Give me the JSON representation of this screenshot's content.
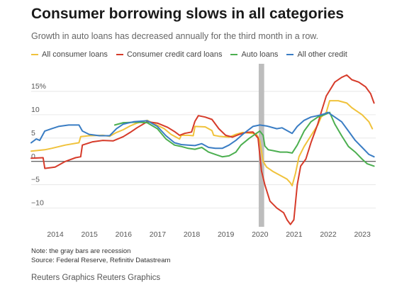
{
  "header": {
    "title": "Consumer borrowing slows in all categories",
    "subtitle": "Growth in auto loans has decreased annually for the third month in a row."
  },
  "footer": {
    "note": "Note: the gray bars are recession",
    "source": "Source: Federal Reserve, Refinitiv Datastream",
    "credit": "Reuters Graphics Reuters Graphics"
  },
  "colors": {
    "all_consumer_loans": "#f0c23b",
    "consumer_credit_card_loans": "#d63b2a",
    "auto_loans": "#4caf50",
    "all_other_credit": "#3a7dc4",
    "recession": "#bdbdbd"
  },
  "chart_data": {
    "type": "line",
    "title": "Consumer borrowing slows in all categories",
    "subtitle": "Growth in auto loans has decreased annually for the third month in a row.",
    "x_ticks": [
      "2014",
      "2015",
      "2016",
      "2017",
      "2018",
      "2019",
      "2020",
      "2021",
      "2022",
      "2023"
    ],
    "y_ticks": [
      "15%",
      "10",
      "5",
      "0",
      "−5",
      "−10"
    ],
    "y_tick_values": [
      15,
      10,
      5,
      0,
      -5,
      -10
    ],
    "xlim": [
      2013.5,
      2023.6
    ],
    "ylim": [
      -14,
      20
    ],
    "legend_position": "top-left",
    "recession_band": [
      2020.17,
      2020.33
    ],
    "series": [
      {
        "name": "All consumer loans",
        "color": "#f0c23b",
        "points": [
          [
            2013.5,
            2.2
          ],
          [
            2013.9,
            2.5
          ],
          [
            2014.1,
            2.8
          ],
          [
            2014.5,
            3.5
          ],
          [
            2014.9,
            4.0
          ],
          [
            2014.95,
            5.3
          ],
          [
            2015.2,
            5.5
          ],
          [
            2015.6,
            5.6
          ],
          [
            2015.8,
            5.4
          ],
          [
            2016.0,
            6.2
          ],
          [
            2016.2,
            6.8
          ],
          [
            2016.4,
            7.6
          ],
          [
            2016.6,
            8.2
          ],
          [
            2016.9,
            8.8
          ],
          [
            2017.1,
            8.1
          ],
          [
            2017.4,
            7.0
          ],
          [
            2017.6,
            5.8
          ],
          [
            2017.85,
            4.8
          ],
          [
            2017.9,
            5.6
          ],
          [
            2018.1,
            5.6
          ],
          [
            2018.25,
            5.5
          ],
          [
            2018.3,
            7.5
          ],
          [
            2018.6,
            7.4
          ],
          [
            2018.8,
            6.6
          ],
          [
            2018.85,
            5.6
          ],
          [
            2019.0,
            5.4
          ],
          [
            2019.3,
            5.2
          ],
          [
            2019.5,
            5.8
          ],
          [
            2019.7,
            6.2
          ],
          [
            2020.0,
            6.0
          ],
          [
            2020.1,
            5.9
          ],
          [
            2020.2,
            4.5
          ],
          [
            2020.3,
            0.0
          ],
          [
            2020.4,
            -1.2
          ],
          [
            2020.6,
            -2.2
          ],
          [
            2020.8,
            -3.0
          ],
          [
            2021.0,
            -3.8
          ],
          [
            2021.1,
            -4.6
          ],
          [
            2021.15,
            -5.2
          ],
          [
            2021.25,
            -2.5
          ],
          [
            2021.35,
            1.0
          ],
          [
            2021.5,
            3.2
          ],
          [
            2021.7,
            5.5
          ],
          [
            2021.9,
            7.8
          ],
          [
            2022.0,
            9.5
          ],
          [
            2022.15,
            10.5
          ],
          [
            2022.25,
            13.0
          ],
          [
            2022.5,
            13.0
          ],
          [
            2022.75,
            12.5
          ],
          [
            2022.9,
            11.5
          ],
          [
            2023.0,
            11.0
          ],
          [
            2023.2,
            10.0
          ],
          [
            2023.4,
            8.5
          ],
          [
            2023.5,
            7.0
          ]
        ]
      },
      {
        "name": "Consumer credit card loans",
        "color": "#d63b2a",
        "points": [
          [
            2013.5,
            0.7
          ],
          [
            2013.85,
            0.8
          ],
          [
            2013.9,
            -1.5
          ],
          [
            2014.2,
            -1.2
          ],
          [
            2014.5,
            0.0
          ],
          [
            2014.8,
            0.8
          ],
          [
            2014.95,
            1.0
          ],
          [
            2015.0,
            3.5
          ],
          [
            2015.3,
            4.2
          ],
          [
            2015.6,
            4.5
          ],
          [
            2015.9,
            4.4
          ],
          [
            2016.2,
            5.3
          ],
          [
            2016.4,
            6.2
          ],
          [
            2016.6,
            7.2
          ],
          [
            2016.9,
            8.5
          ],
          [
            2017.2,
            8.2
          ],
          [
            2017.5,
            7.3
          ],
          [
            2017.7,
            6.4
          ],
          [
            2017.85,
            5.6
          ],
          [
            2018.0,
            6.0
          ],
          [
            2018.2,
            6.3
          ],
          [
            2018.3,
            8.6
          ],
          [
            2018.4,
            9.8
          ],
          [
            2018.6,
            9.5
          ],
          [
            2018.8,
            9.0
          ],
          [
            2019.0,
            7.0
          ],
          [
            2019.2,
            5.6
          ],
          [
            2019.4,
            5.2
          ],
          [
            2019.6,
            5.8
          ],
          [
            2019.8,
            6.2
          ],
          [
            2020.0,
            6.3
          ],
          [
            2020.15,
            5.0
          ],
          [
            2020.25,
            -2.0
          ],
          [
            2020.35,
            -5.0
          ],
          [
            2020.5,
            -8.5
          ],
          [
            2020.7,
            -10.0
          ],
          [
            2020.9,
            -11.0
          ],
          [
            2021.0,
            -12.5
          ],
          [
            2021.1,
            -13.5
          ],
          [
            2021.2,
            -12.5
          ],
          [
            2021.3,
            -5.0
          ],
          [
            2021.4,
            -1.0
          ],
          [
            2021.55,
            0.5
          ],
          [
            2021.7,
            4.0
          ],
          [
            2021.9,
            8.0
          ],
          [
            2022.0,
            10.5
          ],
          [
            2022.15,
            14.0
          ],
          [
            2022.4,
            17.0
          ],
          [
            2022.6,
            18.0
          ],
          [
            2022.75,
            18.5
          ],
          [
            2022.9,
            17.5
          ],
          [
            2023.1,
            17.0
          ],
          [
            2023.3,
            16.0
          ],
          [
            2023.45,
            14.5
          ],
          [
            2023.55,
            12.5
          ]
        ]
      },
      {
        "name": "Auto loans",
        "color": "#4caf50",
        "points": [
          [
            2015.95,
            7.8
          ],
          [
            2016.2,
            8.3
          ],
          [
            2016.6,
            8.4
          ],
          [
            2016.9,
            8.3
          ],
          [
            2017.2,
            7.0
          ],
          [
            2017.45,
            4.8
          ],
          [
            2017.7,
            3.5
          ],
          [
            2017.9,
            3.2
          ],
          [
            2018.1,
            2.8
          ],
          [
            2018.3,
            2.6
          ],
          [
            2018.5,
            3.0
          ],
          [
            2018.7,
            2.0
          ],
          [
            2018.9,
            1.5
          ],
          [
            2019.1,
            1.0
          ],
          [
            2019.3,
            1.2
          ],
          [
            2019.5,
            2.0
          ],
          [
            2019.65,
            3.5
          ],
          [
            2019.9,
            5.0
          ],
          [
            2020.1,
            6.0
          ],
          [
            2020.2,
            6.5
          ],
          [
            2020.3,
            5.6
          ],
          [
            2020.35,
            3.3
          ],
          [
            2020.45,
            2.5
          ],
          [
            2020.6,
            2.3
          ],
          [
            2020.8,
            2.0
          ],
          [
            2021.0,
            2.0
          ],
          [
            2021.15,
            1.8
          ],
          [
            2021.3,
            3.5
          ],
          [
            2021.5,
            6.5
          ],
          [
            2021.7,
            8.5
          ],
          [
            2021.9,
            9.5
          ],
          [
            2022.1,
            10.0
          ],
          [
            2022.25,
            10.5
          ],
          [
            2022.4,
            8.0
          ],
          [
            2022.6,
            5.5
          ],
          [
            2022.8,
            3.2
          ],
          [
            2023.0,
            2.0
          ],
          [
            2023.2,
            0.5
          ],
          [
            2023.35,
            -0.5
          ],
          [
            2023.55,
            -1.0
          ]
        ]
      },
      {
        "name": "All other credit",
        "color": "#3a7dc4",
        "points": [
          [
            2013.5,
            4.0
          ],
          [
            2013.65,
            4.8
          ],
          [
            2013.75,
            4.5
          ],
          [
            2013.9,
            6.5
          ],
          [
            2014.1,
            7.0
          ],
          [
            2014.3,
            7.5
          ],
          [
            2014.6,
            7.8
          ],
          [
            2014.9,
            7.8
          ],
          [
            2015.0,
            6.5
          ],
          [
            2015.2,
            5.8
          ],
          [
            2015.5,
            5.5
          ],
          [
            2015.8,
            5.5
          ],
          [
            2016.0,
            7.0
          ],
          [
            2016.2,
            8.0
          ],
          [
            2016.5,
            8.5
          ],
          [
            2016.9,
            8.7
          ],
          [
            2017.2,
            7.5
          ],
          [
            2017.45,
            5.5
          ],
          [
            2017.7,
            4.0
          ],
          [
            2017.9,
            3.6
          ],
          [
            2018.1,
            3.5
          ],
          [
            2018.3,
            3.4
          ],
          [
            2018.5,
            3.8
          ],
          [
            2018.7,
            3.0
          ],
          [
            2018.9,
            2.8
          ],
          [
            2019.1,
            2.8
          ],
          [
            2019.3,
            3.5
          ],
          [
            2019.5,
            4.5
          ],
          [
            2019.7,
            5.8
          ],
          [
            2020.0,
            7.5
          ],
          [
            2020.2,
            7.8
          ],
          [
            2020.4,
            7.6
          ],
          [
            2020.7,
            7.0
          ],
          [
            2020.85,
            7.2
          ],
          [
            2021.0,
            6.6
          ],
          [
            2021.15,
            6.0
          ],
          [
            2021.3,
            7.5
          ],
          [
            2021.5,
            8.8
          ],
          [
            2021.7,
            9.5
          ],
          [
            2021.9,
            9.8
          ],
          [
            2022.1,
            10.2
          ],
          [
            2022.2,
            10.5
          ],
          [
            2022.4,
            9.5
          ],
          [
            2022.6,
            8.5
          ],
          [
            2022.8,
            6.5
          ],
          [
            2023.0,
            4.5
          ],
          [
            2023.2,
            3.0
          ],
          [
            2023.4,
            1.5
          ],
          [
            2023.55,
            1.0
          ]
        ]
      }
    ]
  }
}
